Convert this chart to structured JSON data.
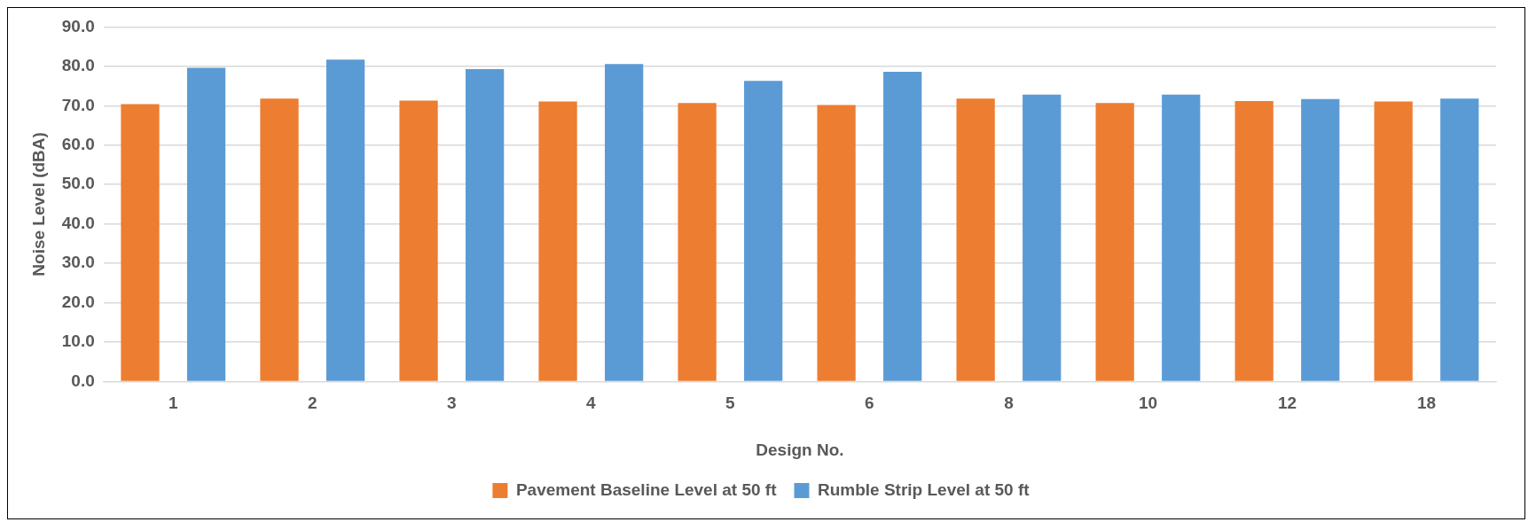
{
  "chart_data": {
    "type": "bar",
    "xlabel": "Design No.",
    "ylabel": "Noise Level (dBA)",
    "categories": [
      "1",
      "2",
      "3",
      "4",
      "5",
      "6",
      "8",
      "10",
      "12",
      "18"
    ],
    "series": [
      {
        "name": "Pavement Baseline Level at 50 ft",
        "color": "#ed7d31",
        "values": [
          70.4,
          71.8,
          71.3,
          71.1,
          70.7,
          70.2,
          71.8,
          70.7,
          71.2,
          71.1
        ]
      },
      {
        "name": "Rumble Strip Level at 50 ft",
        "color": "#5b9bd5",
        "values": [
          79.6,
          81.7,
          79.3,
          80.6,
          76.3,
          78.6,
          72.8,
          72.8,
          71.7,
          71.8
        ]
      }
    ],
    "ylim": [
      0,
      90
    ],
    "yticks": [
      {
        "value": 0,
        "label": "0.0"
      },
      {
        "value": 10,
        "label": "10.0"
      },
      {
        "value": 20,
        "label": "20.0"
      },
      {
        "value": 30,
        "label": "30.0"
      },
      {
        "value": 40,
        "label": "40.0"
      },
      {
        "value": 50,
        "label": "50.0"
      },
      {
        "value": 60,
        "label": "60.0"
      },
      {
        "value": 70,
        "label": "70.0"
      },
      {
        "value": 80,
        "label": "80.0"
      },
      {
        "value": 90,
        "label": "90.0"
      }
    ],
    "grid": "y",
    "legend": "bottom"
  }
}
